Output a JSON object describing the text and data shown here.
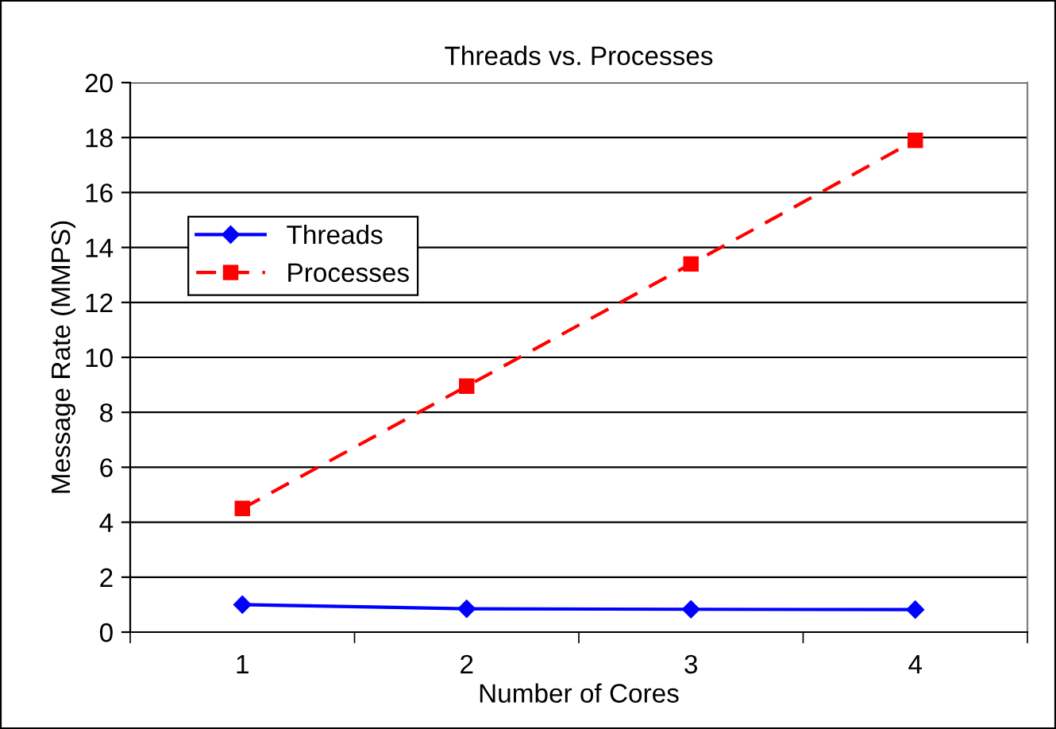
{
  "chart_data": {
    "type": "line",
    "title": "Threads vs. Processes",
    "xlabel": "Number of Cores",
    "ylabel": "Message Rate (MMPS)",
    "categories": [
      "1",
      "2",
      "3",
      "4"
    ],
    "series": [
      {
        "name": "Threads",
        "color": "#0000ff",
        "values": [
          1.0,
          0.85,
          0.83,
          0.82
        ],
        "marker": "diamond",
        "line_style": "solid"
      },
      {
        "name": "Processes",
        "color": "#ff0000",
        "values": [
          4.5,
          8.95,
          13.4,
          17.9
        ],
        "marker": "square",
        "line_style": "dashed"
      }
    ],
    "ylim": [
      0,
      20
    ],
    "yticks": [
      0,
      2,
      4,
      6,
      8,
      10,
      12,
      14,
      16,
      18,
      20
    ],
    "grid": "y",
    "legend": "top left"
  }
}
